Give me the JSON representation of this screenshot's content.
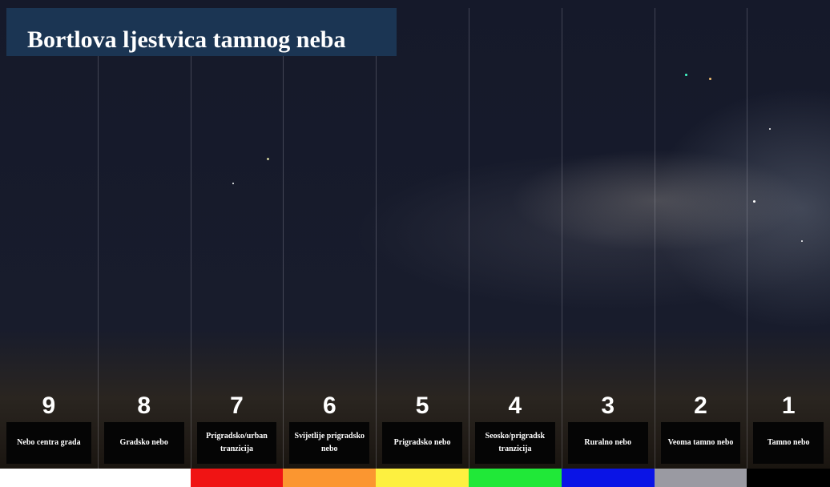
{
  "title": "Bortlova ljestvica tamnog neba",
  "columns": [
    {
      "number": 9,
      "label": "Nebo centra grada",
      "color": "#ffffff"
    },
    {
      "number": 8,
      "label": "Gradsko nebo",
      "color": "#ffffff"
    },
    {
      "number": 7,
      "label": "Prigradsko/urban tranzicija",
      "color": "#f01414"
    },
    {
      "number": 6,
      "label": "Svijetlije prigradsko nebo",
      "color": "#fb9630"
    },
    {
      "number": 5,
      "label": "Prigradsko nebo",
      "color": "#fdf040"
    },
    {
      "number": 4,
      "label": "Seosko/prigradsk tranzicija",
      "color": "#20e838"
    },
    {
      "number": 3,
      "label": "Ruralno nebo",
      "color": "#0a14e6"
    },
    {
      "number": 2,
      "label": "Veoma tamno nebo",
      "color": "#9a9aa2"
    },
    {
      "number": 1,
      "label": "Tamno nebo",
      "color": "#000000"
    }
  ]
}
